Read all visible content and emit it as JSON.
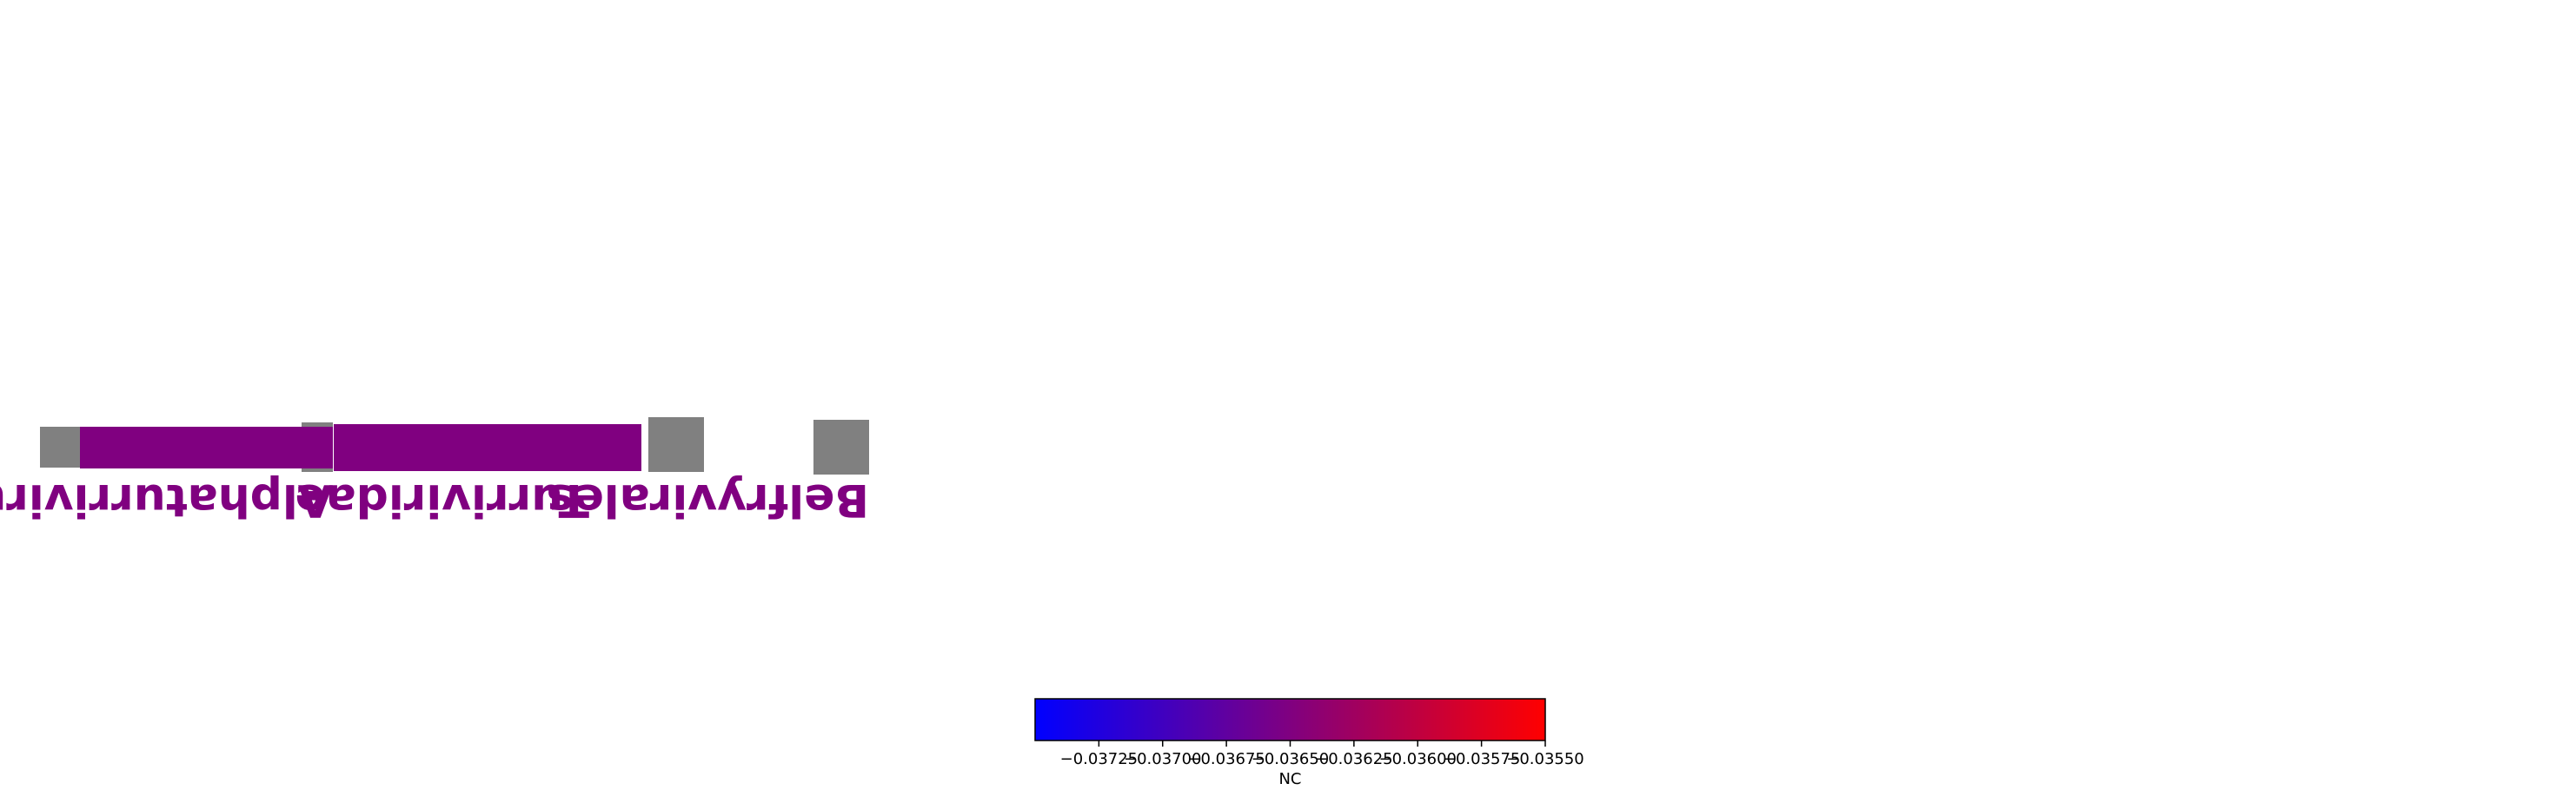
{
  "chart_data": {
    "type": "heatmap",
    "taxa": [
      {
        "name": "Belfryvirales",
        "rank": "order",
        "value": -0.0365,
        "color": "#800080"
      },
      {
        "name": "Turriviridae",
        "rank": "family",
        "value": -0.0365,
        "color": "#800080"
      },
      {
        "name": "Alphaturrivirus",
        "rank": "genus",
        "value": -0.0365,
        "color": "#800080"
      }
    ],
    "missing_color": "#808080",
    "colorbar": {
      "label": "NC",
      "cmap": [
        "#0000ff",
        "#800080",
        "#ff0000"
      ],
      "range": [
        -0.0375,
        -0.0355
      ],
      "ticks": [
        -0.03725,
        -0.037,
        -0.03675,
        -0.0365,
        -0.03625,
        -0.036,
        -0.03575,
        -0.0355
      ],
      "tick_labels": [
        "−0.03725",
        "−0.03700",
        "−0.03675",
        "−0.03650",
        "−0.03625",
        "−0.03600",
        "−0.03575",
        "−0.03550"
      ]
    }
  }
}
